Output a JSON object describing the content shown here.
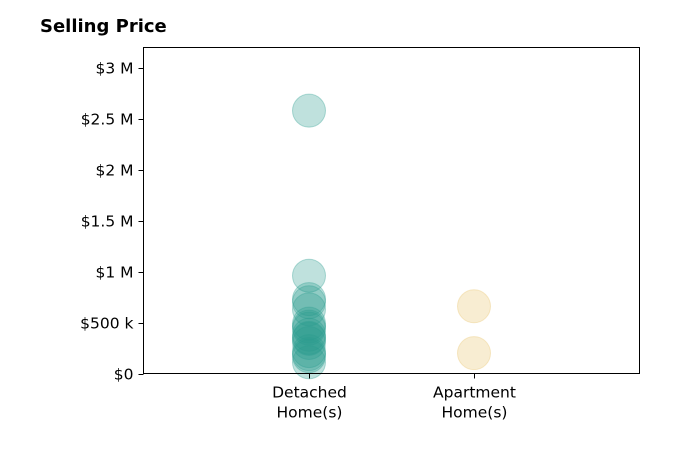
{
  "chart_data": {
    "type": "scatter",
    "title": "Selling Price",
    "xlabel": "",
    "ylabel": "",
    "categories": [
      "Detached Home(s)",
      "Apartment Home(s)"
    ],
    "category_lines": [
      [
        "Detached",
        "Home(s)"
      ],
      [
        "Apartment",
        "Home(s)"
      ]
    ],
    "ylim": [
      0,
      3200000
    ],
    "yticks": [
      0,
      500000,
      1000000,
      1500000,
      2000000,
      2500000,
      3000000
    ],
    "ytick_labels": [
      "$0",
      "$500 k",
      "$1 M",
      "$1.5 M",
      "$2 M",
      "$2.5 M",
      "$3 M"
    ],
    "grid": false,
    "series": [
      {
        "category": "Detached Home(s)",
        "color": "#2a9d8f",
        "values": [
          2580000,
          960000,
          730000,
          700000,
          630000,
          490000,
          460000,
          440000,
          380000,
          350000,
          340000,
          300000,
          220000,
          190000,
          170000,
          110000
        ]
      },
      {
        "category": "Apartment Home(s)",
        "color": "#e9c46a",
        "values": [
          660000,
          200000
        ]
      }
    ]
  }
}
